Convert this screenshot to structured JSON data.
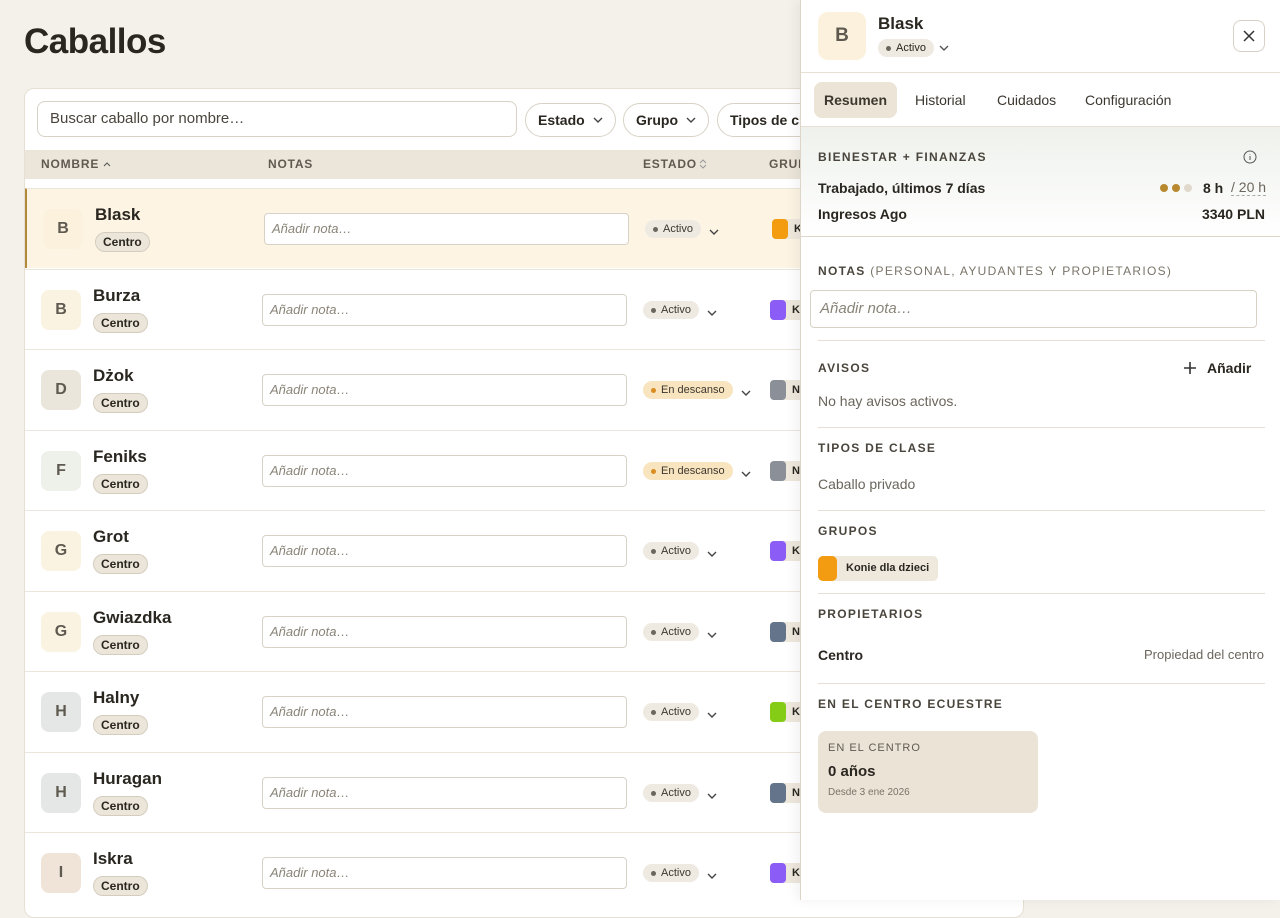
{
  "page": {
    "title": "Caballos",
    "search_placeholder": "Buscar caballo por nombre…",
    "filters": [
      "Estado",
      "Grupo",
      "Tipos de clase"
    ],
    "columns": [
      "NOMBRE",
      "NOTAS",
      "ESTADO",
      "GRUPO"
    ]
  },
  "table": {
    "rows": [
      {
        "initial": "B",
        "name": "Blask",
        "badge": "Centro",
        "note": "Añadir nota…",
        "status": "Activo",
        "status_color": "#6b665c",
        "status_bg": "#eeeae2",
        "group": "Ko",
        "group_color": "#f39c12",
        "avatar_color": "#fbf1dc",
        "selected": true
      },
      {
        "initial": "B",
        "name": "Burza",
        "badge": "Centro",
        "note": "Añadir nota…",
        "status": "Activo",
        "status_color": "#6b665c",
        "status_bg": "#eeeae2",
        "group": "Ko",
        "group_color": "#8b5cf6",
        "avatar_color": "#fbf3e2",
        "selected": false
      },
      {
        "initial": "D",
        "name": "Dżok",
        "badge": "Centro",
        "note": "Añadir nota…",
        "status": "En descanso",
        "status_color": "#d98c1f",
        "status_bg": "#f8e4bf",
        "group": "Na",
        "group_color": "#8a8f98",
        "avatar_color": "#ebe6dc",
        "selected": false
      },
      {
        "initial": "F",
        "name": "Feniks",
        "badge": "Centro",
        "note": "Añadir nota…",
        "status": "En descanso",
        "status_color": "#d98c1f",
        "status_bg": "#f8e4bf",
        "group": "Na",
        "group_color": "#8a8f98",
        "avatar_color": "#eef0ea",
        "selected": false
      },
      {
        "initial": "G",
        "name": "Grot",
        "badge": "Centro",
        "note": "Añadir nota…",
        "status": "Activo",
        "status_color": "#6b665c",
        "status_bg": "#eeeae2",
        "group": "Ko",
        "group_color": "#8b5cf6",
        "avatar_color": "#fbf3e2",
        "selected": false
      },
      {
        "initial": "G",
        "name": "Gwiazdka",
        "badge": "Centro",
        "note": "Añadir nota…",
        "status": "Activo",
        "status_color": "#6b665c",
        "status_bg": "#eeeae2",
        "group": "Na",
        "group_color": "#64748b",
        "avatar_color": "#fbf3e2",
        "selected": false
      },
      {
        "initial": "H",
        "name": "Halny",
        "badge": "Centro",
        "note": "Añadir nota…",
        "status": "Activo",
        "status_color": "#6b665c",
        "status_bg": "#eeeae2",
        "group": "Ko",
        "group_color": "#84cc16",
        "avatar_color": "#e4e7e6",
        "selected": false
      },
      {
        "initial": "H",
        "name": "Huragan",
        "badge": "Centro",
        "note": "Añadir nota…",
        "status": "Activo",
        "status_color": "#6b665c",
        "status_bg": "#eeeae2",
        "group": "Na",
        "group_color": "#64748b",
        "avatar_color": "#e4e7e6",
        "selected": false
      },
      {
        "initial": "I",
        "name": "Iskra",
        "badge": "Centro",
        "note": "Añadir nota…",
        "status": "Activo",
        "status_color": "#6b665c",
        "status_bg": "#eeeae2",
        "group": "Ko",
        "group_color": "#8b5cf6",
        "avatar_color": "#efe4d7",
        "selected": false
      }
    ]
  },
  "panel": {
    "initial": "B",
    "name": "Blask",
    "status": "Activo",
    "tabs": [
      "Resumen",
      "Historial",
      "Cuidados",
      "Configuración"
    ],
    "wellness": {
      "title": "BIENESTAR + FINANZAS",
      "worked_label": "Trabajado, últimos 7 días",
      "worked_value": "8 h",
      "worked_target": "/ 20 h",
      "income_label": "Ingresos Ago",
      "income_value": "3340 PLN"
    },
    "notes": {
      "title": "NOTAS",
      "subtitle": "(PERSONAL, AYUDANTES Y PROPIETARIOS)",
      "placeholder": "Añadir nota…"
    },
    "alerts": {
      "title": "AVISOS",
      "button": "Añadir",
      "empty": "No hay avisos activos."
    },
    "class_types": {
      "title": "TIPOS DE CLASE",
      "value": "Caballo privado"
    },
    "groups": {
      "title": "GRUPOS",
      "chip": "Konie dla dzieci",
      "chip_color": "#f39c12"
    },
    "owners": {
      "title": "PROPIETARIOS",
      "name": "Centro",
      "detail": "Propiedad del centro"
    },
    "center": {
      "title": "EN EL CENTRO ECUESTRE",
      "card_label": "EN EL CENTRO",
      "card_value": "0 años",
      "card_since": "Desde 3 ene 2026"
    }
  }
}
